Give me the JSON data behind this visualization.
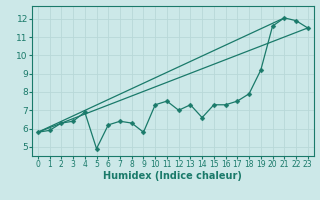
{
  "xlabel": "Humidex (Indice chaleur)",
  "bg_color": "#cce8e8",
  "grid_color": "#b8d8d8",
  "line_color": "#1a7a6a",
  "xlim": [
    -0.5,
    23.5
  ],
  "ylim": [
    4.5,
    12.7
  ],
  "xticks": [
    0,
    1,
    2,
    3,
    4,
    5,
    6,
    7,
    8,
    9,
    10,
    11,
    12,
    13,
    14,
    15,
    16,
    17,
    18,
    19,
    20,
    21,
    22,
    23
  ],
  "yticks": [
    5,
    6,
    7,
    8,
    9,
    10,
    11,
    12
  ],
  "line1_x": [
    0,
    21
  ],
  "line1_y": [
    5.8,
    12.05
  ],
  "line2_x": [
    0,
    23
  ],
  "line2_y": [
    5.8,
    11.5
  ],
  "curve_x": [
    0,
    1,
    2,
    3,
    4,
    5,
    6,
    7,
    8,
    9,
    10,
    11,
    12,
    13,
    14,
    15,
    16,
    17,
    18,
    19,
    20,
    21,
    22,
    23
  ],
  "curve_y": [
    5.8,
    5.9,
    6.3,
    6.4,
    6.9,
    4.9,
    6.2,
    6.4,
    6.3,
    5.8,
    7.3,
    7.5,
    7.0,
    7.3,
    6.6,
    7.3,
    7.3,
    7.5,
    7.9,
    9.2,
    11.6,
    12.05,
    11.9,
    11.5
  ],
  "xlabel_fontsize": 7,
  "xtick_fontsize": 5.5,
  "ytick_fontsize": 6.5,
  "linewidth": 0.9,
  "markersize": 2.5
}
